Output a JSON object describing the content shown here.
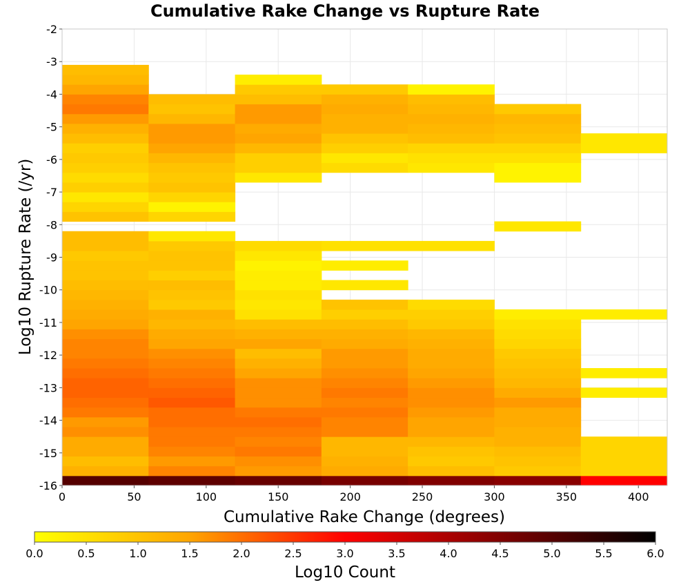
{
  "chart_data": {
    "type": "heatmap",
    "title": "Cumulative Rake Change vs Rupture Rate",
    "xlabel": "Cumulative Rake Change (degrees)",
    "ylabel": "Log10 Rupture Rate (/yr)",
    "xlim": [
      0,
      420
    ],
    "ylim": [
      -16,
      -2
    ],
    "x_ticks": [
      0,
      50,
      100,
      150,
      200,
      250,
      300,
      350,
      400
    ],
    "y_ticks": [
      -2,
      -3,
      -4,
      -5,
      -6,
      -7,
      -8,
      -9,
      -10,
      -11,
      -12,
      -13,
      -14,
      -15,
      -16
    ],
    "x_bin_width": 60,
    "y_bin_height": 0.3,
    "grid": true,
    "colorbar": {
      "label": "Log10 Count",
      "range": [
        0,
        6
      ],
      "ticks": [
        "0.0",
        "0.5",
        "1.0",
        "1.5",
        "2.0",
        "2.5",
        "3.0",
        "3.5",
        "4.0",
        "4.5",
        "5.0",
        "5.5",
        "6.0"
      ],
      "colors": [
        "#ffff00",
        "#ffa500",
        "#ff0000",
        "#800000",
        "#000000"
      ]
    },
    "columns": [
      {
        "x_start": 0,
        "y_start": -16.0,
        "values": [
          5.0,
          1.3,
          1.1,
          1.4,
          1.4,
          1.7,
          1.6,
          1.9,
          2.0,
          2.1,
          2.1,
          2.0,
          1.9,
          1.8,
          1.8,
          1.7,
          1.5,
          1.4,
          1.3,
          1.2,
          1.1,
          1.0,
          1.0,
          0.9,
          1.1,
          1.1,
          null,
          1.0,
          0.7,
          0.4,
          0.8,
          0.6,
          0.8,
          0.9,
          0.8,
          1.1,
          1.3,
          1.6,
          1.9,
          1.8,
          1.5,
          1.2,
          1.1
        ]
      },
      {
        "x_start": 60,
        "y_start": -16.0,
        "values": [
          4.9,
          1.8,
          1.6,
          1.8,
          1.9,
          1.9,
          2.0,
          2.0,
          2.2,
          2.1,
          2.0,
          1.9,
          1.8,
          1.7,
          1.5,
          1.4,
          1.2,
          1.3,
          0.9,
          1.0,
          1.1,
          0.8,
          1.0,
          1.0,
          0.9,
          0.4,
          null,
          0.7,
          0.2,
          0.7,
          1.0,
          0.9,
          1.0,
          1.2,
          1.5,
          1.6,
          1.6,
          1.2,
          1.0,
          1.1
        ]
      },
      {
        "x_start": 120,
        "y_start": -16.0,
        "values": [
          4.8,
          1.6,
          1.7,
          1.9,
          1.8,
          1.9,
          2.0,
          1.9,
          1.7,
          1.7,
          1.7,
          1.5,
          1.3,
          1.1,
          1.5,
          1.3,
          1.1,
          0.5,
          0.4,
          0.5,
          0.3,
          0.3,
          0.2,
          0.4,
          0.6,
          null,
          null,
          null,
          null,
          null,
          null,
          0.4,
          0.8,
          0.8,
          1.2,
          1.5,
          1.4,
          1.6,
          1.6,
          1.1,
          0.9,
          0.3
        ]
      },
      {
        "x_start": 180,
        "y_start": -16.0,
        "values": [
          4.6,
          1.4,
          1.3,
          1.2,
          1.2,
          1.8,
          1.8,
          1.9,
          1.8,
          1.9,
          1.8,
          1.7,
          1.6,
          1.6,
          1.4,
          1.3,
          1.1,
          0.8,
          1.0,
          null,
          0.4,
          null,
          0.3,
          null,
          0.5,
          null,
          null,
          null,
          null,
          null,
          null,
          null,
          0.6,
          0.4,
          0.8,
          1.0,
          1.3,
          1.3,
          1.4,
          1.3,
          0.9
        ]
      },
      {
        "x_start": 240,
        "y_start": -16.0,
        "values": [
          4.5,
          1.1,
          0.9,
          1.0,
          1.2,
          1.5,
          1.5,
          1.6,
          1.7,
          1.7,
          1.6,
          1.5,
          1.4,
          1.4,
          1.3,
          1.2,
          0.9,
          0.8,
          0.6,
          null,
          null,
          null,
          null,
          null,
          0.5,
          null,
          null,
          null,
          null,
          null,
          null,
          null,
          0.4,
          0.5,
          0.7,
          1.1,
          1.2,
          1.3,
          1.2,
          1.1,
          0.2
        ]
      },
      {
        "x_start": 300,
        "y_start": -16.0,
        "values": [
          4.4,
          0.9,
          1.0,
          1.1,
          1.3,
          1.3,
          1.4,
          1.4,
          1.6,
          1.4,
          1.2,
          1.1,
          1.0,
          0.9,
          0.7,
          0.6,
          0.5,
          0.3,
          null,
          null,
          null,
          null,
          null,
          null,
          null,
          null,
          0.4,
          null,
          null,
          null,
          null,
          0.2,
          0.2,
          0.5,
          0.7,
          1.0,
          1.1,
          1.2,
          0.9
        ]
      },
      {
        "x_start": 360,
        "y_start": -16.0,
        "values": [
          3.0,
          0.7,
          0.7,
          0.7,
          0.7,
          null,
          null,
          null,
          null,
          0.3,
          null,
          0.3,
          null,
          null,
          null,
          null,
          null,
          0.3,
          null,
          null,
          null,
          null,
          null,
          null,
          null,
          null,
          null,
          null,
          null,
          null,
          null,
          null,
          null,
          null,
          0.4,
          0.4
        ]
      }
    ]
  }
}
